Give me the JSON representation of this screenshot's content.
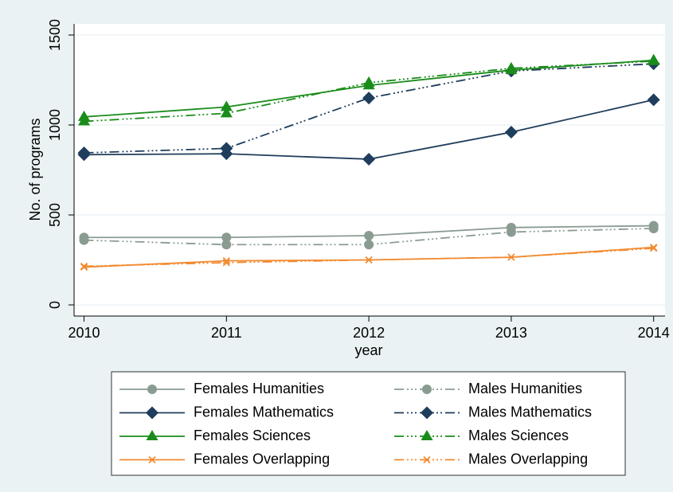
{
  "chart_data": {
    "type": "line",
    "y_label": "No. of programs",
    "x_label": "year",
    "x": [
      2010,
      2011,
      2012,
      2013,
      2014
    ],
    "xlim": [
      2009.93,
      2014.08
    ],
    "xticks": [
      2010,
      2011,
      2012,
      2013,
      2014
    ],
    "ylim": [
      -62,
      1562
    ],
    "yticks": [
      0,
      500,
      1000,
      1500
    ],
    "grid": true,
    "series": [
      {
        "name": "Females Humanities",
        "color": "#8a9c92",
        "marker": "circle",
        "line_style": "solid",
        "values": [
          375,
          375,
          385,
          430,
          440
        ]
      },
      {
        "name": "Males Humanities",
        "color": "#8a9c92",
        "marker": "circle",
        "line_style": "dash-dot",
        "values": [
          360,
          335,
          335,
          405,
          425
        ]
      },
      {
        "name": "Females Mathematics",
        "color": "#1f3d5c",
        "marker": "diamond",
        "line_style": "solid",
        "values": [
          835,
          840,
          810,
          960,
          1140
        ]
      },
      {
        "name": "Males Mathematics",
        "color": "#1f3d5c",
        "marker": "diamond",
        "line_style": "dash-dot",
        "values": [
          845,
          870,
          1150,
          1300,
          1340
        ]
      },
      {
        "name": "Females Sciences",
        "color": "#1a8c1a",
        "marker": "triangle",
        "line_style": "solid",
        "values": [
          1045,
          1100,
          1220,
          1305,
          1360
        ]
      },
      {
        "name": "Males Sciences",
        "color": "#1a8c1a",
        "marker": "triangle",
        "line_style": "dash-dot",
        "values": [
          1020,
          1065,
          1235,
          1315,
          1355
        ]
      },
      {
        "name": "Females Overlapping",
        "color": "#f28a30",
        "marker": "x",
        "line_style": "solid",
        "values": [
          210,
          245,
          250,
          265,
          320
        ]
      },
      {
        "name": "Males Overlapping",
        "color": "#f28a30",
        "marker": "x",
        "line_style": "dash-dot",
        "values": [
          215,
          235,
          250,
          265,
          315
        ]
      }
    ]
  }
}
